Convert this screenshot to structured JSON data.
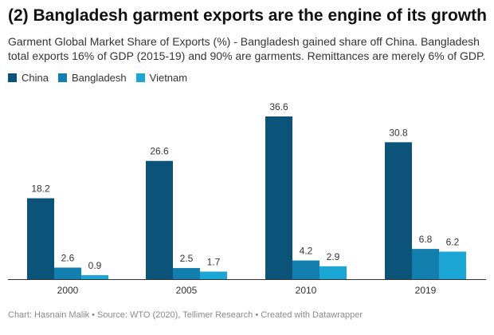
{
  "title": "(2) Bangladesh garment exports are the engine of its growth",
  "subtitle": "Garment Global Market Share of Exports (%) - Bangladesh gained share off China. Bangladesh total exports 16% of GDP (2015-19) and 90% are garments. Remittances are merely 6% of GDP.",
  "footer": "Chart: Hasnain Malik • Source: WTO (2020), Tellimer Research • Created with Datawrapper",
  "colors": {
    "China": "#0b5379",
    "Bangladesh": "#127fae",
    "Vietnam": "#1ca6d6"
  },
  "chart_data": {
    "type": "bar",
    "categories": [
      "2000",
      "2005",
      "2010",
      "2019"
    ],
    "series": [
      {
        "name": "China",
        "values": [
          18.2,
          26.6,
          36.6,
          30.8
        ]
      },
      {
        "name": "Bangladesh",
        "values": [
          2.6,
          2.5,
          4.2,
          6.8
        ]
      },
      {
        "name": "Vietnam",
        "values": [
          0.9,
          1.7,
          2.9,
          6.2
        ]
      }
    ],
    "title": "(2) Bangladesh garment exports are the engine of its growth",
    "ylabel": "",
    "xlabel": "",
    "ylim": [
      0,
      36.6
    ],
    "grid": false,
    "legend": "top-left",
    "data_labels": true
  }
}
